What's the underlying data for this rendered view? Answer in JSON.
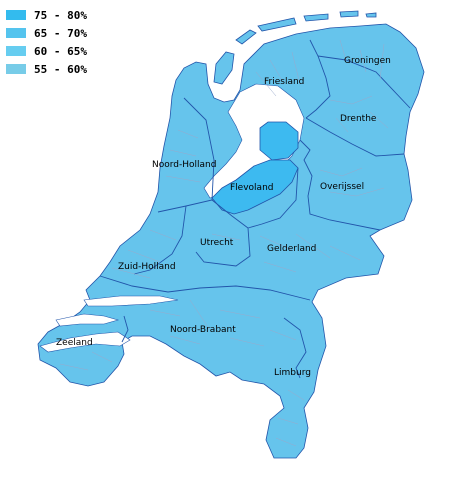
{
  "legend": {
    "items": [
      {
        "label": "75 - 80%",
        "color": "#33bbee"
      },
      {
        "label": "65 - 70%",
        "color": "#55c4ee"
      },
      {
        "label": "60 - 65%",
        "color": "#66cdf0"
      },
      {
        "label": "55 - 60%",
        "color": "#77cce8"
      }
    ]
  },
  "map": {
    "colors": {
      "land": "#66c4ec",
      "flevoland": "#3dbaf0",
      "water": "#ffffff",
      "border": "#2255aa",
      "municipal_border": "#99aacc"
    },
    "provinces": [
      {
        "name": "Friesland"
      },
      {
        "name": "Groningen"
      },
      {
        "name": "Drenthe"
      },
      {
        "name": "Noord-Holland"
      },
      {
        "name": "Flevoland"
      },
      {
        "name": "Overijssel"
      },
      {
        "name": "Utrecht"
      },
      {
        "name": "Gelderland"
      },
      {
        "name": "Zuid-Holland"
      },
      {
        "name": "Noord-Brabant"
      },
      {
        "name": "Zeeland"
      },
      {
        "name": "Limburg"
      }
    ]
  }
}
